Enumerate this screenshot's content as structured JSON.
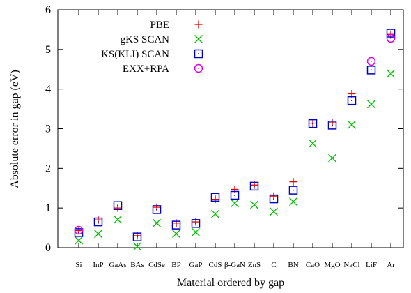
{
  "chart_data": {
    "type": "scatter",
    "title": "",
    "xlabel": "Material ordered by gap",
    "ylabel": "Absolute error in gap (eV)",
    "ylim": [
      0,
      6
    ],
    "yticks": [
      0,
      1,
      2,
      3,
      4,
      5,
      6
    ],
    "grid": false,
    "legend_position": "top-left",
    "categories": [
      "Si",
      "InP",
      "GaAs",
      "BAs",
      "CdSe",
      "BP",
      "GaP",
      "CdS",
      "β-GaN",
      "ZnS",
      "C",
      "BN",
      "CaO",
      "MgO",
      "NaCl",
      "LiF",
      "Ar"
    ],
    "series": [
      {
        "name": "PBE",
        "marker": "plus",
        "color": "#e00000",
        "values": [
          0.43,
          0.7,
          1.0,
          0.3,
          1.02,
          0.62,
          0.65,
          1.22,
          1.47,
          1.58,
          1.3,
          1.66,
          3.14,
          3.15,
          3.88,
          null,
          5.38
        ]
      },
      {
        "name": "gKS SCAN",
        "marker": "cross",
        "color": "#00c000",
        "values": [
          0.18,
          0.35,
          0.71,
          0.03,
          0.62,
          0.35,
          0.39,
          0.85,
          1.12,
          1.08,
          0.91,
          1.16,
          2.63,
          2.26,
          3.1,
          3.62,
          4.39
        ]
      },
      {
        "name": "KS(KLI) SCAN",
        "marker": "square",
        "color": "#0000c0",
        "values": [
          0.38,
          0.65,
          1.06,
          0.27,
          0.96,
          0.57,
          0.61,
          1.27,
          1.32,
          1.55,
          1.23,
          1.45,
          3.13,
          3.09,
          3.71,
          4.48,
          5.41
        ]
      },
      {
        "name": "EXX+RPA",
        "marker": "circle",
        "color": "#e000e0",
        "values": [
          0.44,
          null,
          null,
          null,
          null,
          null,
          null,
          null,
          null,
          null,
          null,
          null,
          null,
          null,
          null,
          4.7,
          5.28
        ]
      }
    ]
  }
}
